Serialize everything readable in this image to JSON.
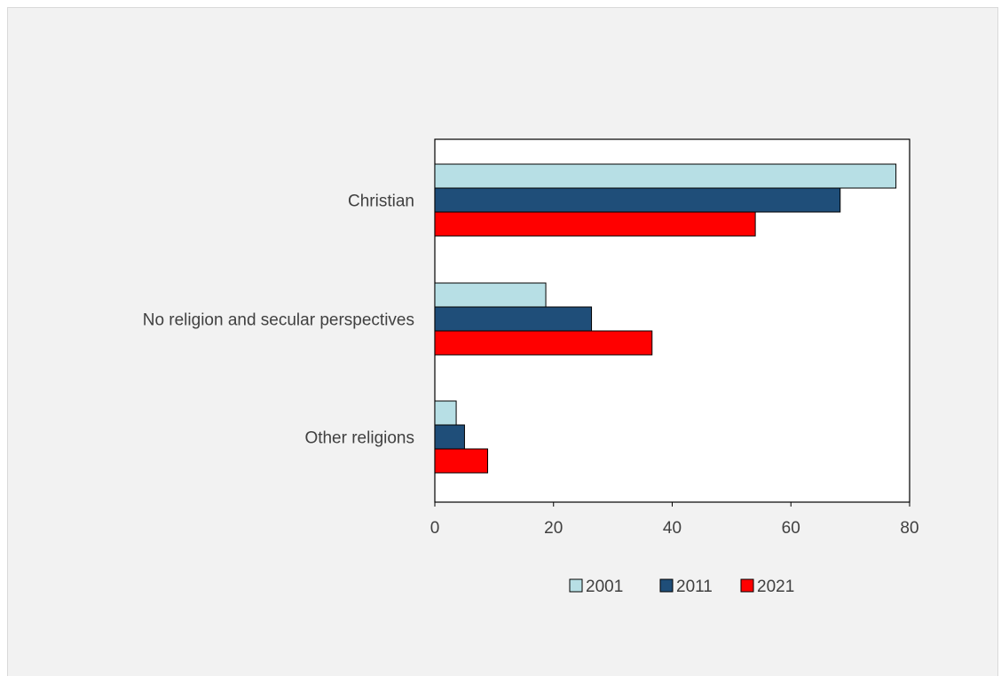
{
  "chart_data": {
    "type": "bar",
    "orientation": "horizontal",
    "categories": [
      "Christian",
      "No religion and secular perspectives",
      "Other religions"
    ],
    "series": [
      {
        "name": "2001",
        "values": [
          77.7,
          18.7,
          3.6
        ],
        "color": "#b7dfe5"
      },
      {
        "name": "2011",
        "values": [
          68.3,
          26.4,
          5.0
        ],
        "color": "#1f4e79"
      },
      {
        "name": "2021",
        "values": [
          54.0,
          36.6,
          8.9
        ],
        "color": "#ff0000"
      }
    ],
    "xlim": [
      0,
      80
    ],
    "xticks": [
      0,
      20,
      40,
      60,
      80
    ],
    "grid": false,
    "legend_position": "bottom"
  }
}
